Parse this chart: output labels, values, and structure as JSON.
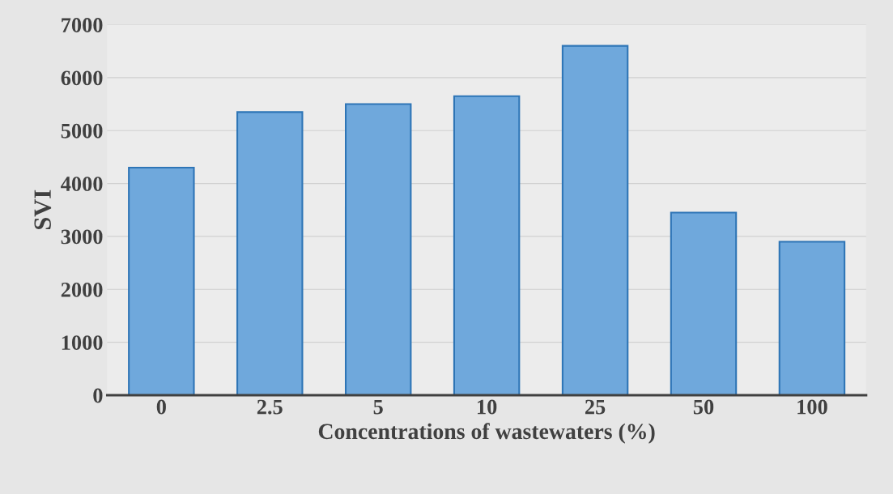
{
  "chart_data": {
    "type": "bar",
    "xlabel": "Concentrations of wastewaters (%)",
    "ylabel": "SVI",
    "categories": [
      "0",
      "2.5",
      "5",
      "10",
      "25",
      "50",
      "100"
    ],
    "values": [
      4300,
      5350,
      5500,
      5650,
      6600,
      3450,
      2900
    ],
    "color": "#6fa8dc",
    "ylim": [
      0,
      7000
    ],
    "yticks": [
      0,
      1000,
      2000,
      3000,
      4000,
      5000,
      6000,
      7000
    ],
    "grid": "y"
  }
}
